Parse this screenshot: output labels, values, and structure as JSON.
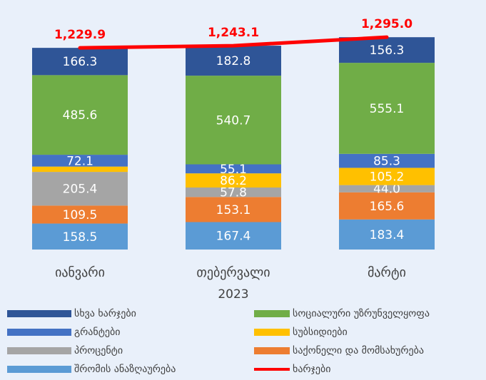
{
  "chart_data": {
    "type": "stacked_bar",
    "categories": [
      "იანვარი",
      "თებერვალი",
      "მარტი"
    ],
    "xlabel": "2023",
    "ylim": [
      0,
      1500
    ],
    "series": [
      {
        "name": "შრომის ანაზღაურება",
        "color": "#5b9bd5",
        "values": [
          158.5,
          167.4,
          183.4
        ]
      },
      {
        "name": "საქონელი და მომსახურება",
        "color": "#ed7d31",
        "values": [
          109.5,
          153.1,
          165.6
        ]
      },
      {
        "name": "პროცენტი",
        "color": "#a5a5a5",
        "values": [
          205.4,
          57.8,
          44.0
        ],
        "value_labels": [
          "205.4",
          "57.8",
          "44.0"
        ]
      },
      {
        "name": "სუბსიდიები",
        "color": "#ffc000",
        "values": [
          32.5,
          86.2,
          105.2
        ],
        "value_labels": [
          null,
          "86.2",
          "105.2"
        ]
      },
      {
        "name": "გრანტები",
        "color": "#4472c4",
        "values": [
          72.1,
          55.1,
          85.3
        ]
      },
      {
        "name": "სოციალური უზრუნველყოფა",
        "color": "#70ad47",
        "values": [
          485.6,
          540.7,
          555.1
        ]
      },
      {
        "name": "სხვა ხარჯები",
        "color": "#2f5597",
        "values": [
          166.3,
          182.8,
          156.3
        ]
      },
      {
        "name": "ხარჯები",
        "color": "#ff0000",
        "type": "line",
        "values": [
          1229.9,
          1243.1,
          1295.0
        ],
        "value_labels": [
          "1,229.9",
          "1,243.1",
          "1,295.0"
        ]
      }
    ]
  }
}
